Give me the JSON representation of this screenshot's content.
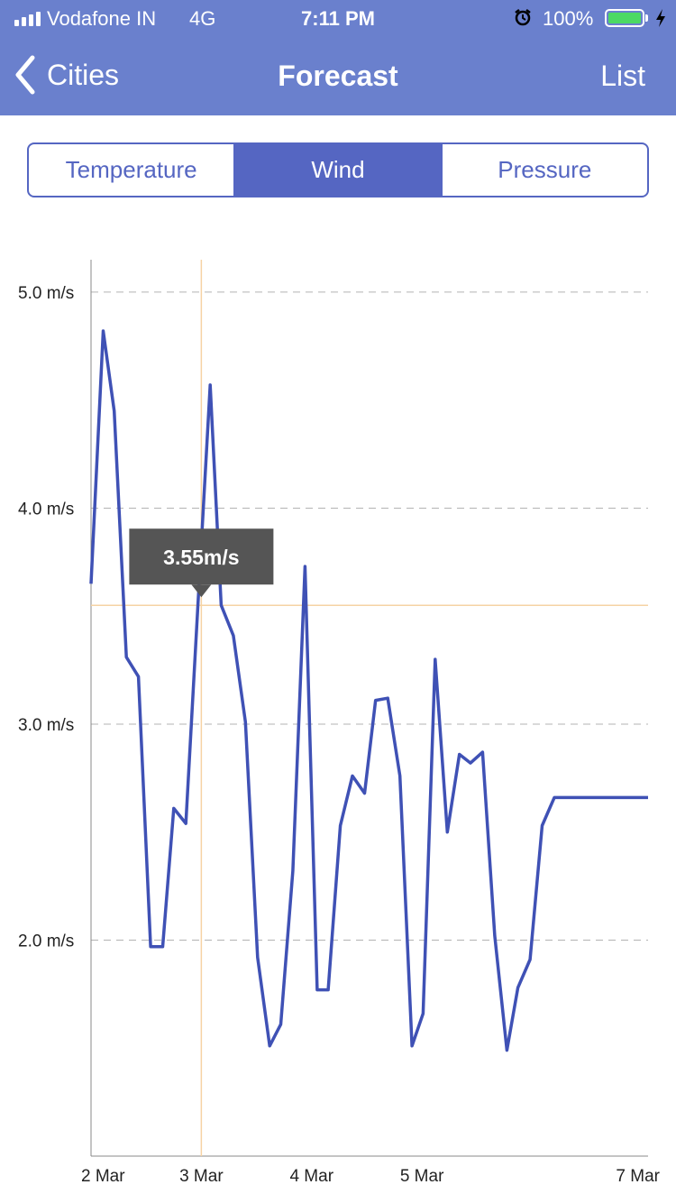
{
  "status_bar": {
    "carrier": "Vodafone IN",
    "network": "4G",
    "time": "7:11 PM",
    "battery": "100%",
    "icons": [
      "signal-bars-icon",
      "alarm-icon",
      "battery-icon",
      "charging-bolt-icon"
    ]
  },
  "nav": {
    "back_label": "Cities",
    "title": "Forecast",
    "right_label": "List",
    "back_icon": "chevron-left-icon"
  },
  "segments": [
    {
      "label": "Temperature",
      "selected": false
    },
    {
      "label": "Wind",
      "selected": true
    },
    {
      "label": "Pressure",
      "selected": false
    }
  ],
  "colors": {
    "header": "#6a80cd",
    "accent": "#5566c2",
    "line": "#3f51b5",
    "crosshair": "#f6d3a4",
    "tooltip": "#555555"
  },
  "tooltip": {
    "text": "3.55m/s",
    "x_day": 3.0,
    "value": 3.55
  },
  "chart_data": {
    "type": "line",
    "ylabel": "",
    "xlabel": "",
    "y_unit": "m/s",
    "ylim": [
      1.0,
      5.15
    ],
    "xlim": [
      2.0,
      7.05
    ],
    "y_ticks": [
      {
        "value": 2.0,
        "label": "2.0 m/s"
      },
      {
        "value": 3.0,
        "label": "3.0 m/s"
      },
      {
        "value": 4.0,
        "label": "4.0 m/s"
      },
      {
        "value": 5.0,
        "label": "5.0 m/s"
      }
    ],
    "x_ticks": [
      {
        "value": 2,
        "label": "2 Mar"
      },
      {
        "value": 3,
        "label": "3 Mar"
      },
      {
        "value": 4,
        "label": "4 Mar"
      },
      {
        "value": 5,
        "label": "5 Mar"
      },
      {
        "value": 7,
        "label": "7 Mar"
      }
    ],
    "grid": "horizontal-dashed",
    "series": [
      {
        "x": [
          2.0,
          2.11,
          2.21,
          2.32,
          2.43,
          2.54,
          2.65,
          2.75,
          2.86,
          2.97,
          3.08,
          3.18,
          3.29,
          3.4,
          3.51,
          3.62,
          3.72,
          3.83,
          3.94,
          4.05,
          4.15,
          4.26,
          4.37,
          4.48,
          4.58,
          4.69,
          4.8,
          4.91,
          5.01,
          5.12,
          5.23,
          5.34,
          5.44,
          5.55,
          5.66,
          5.77,
          5.87,
          5.98,
          6.09,
          6.2,
          6.3,
          6.41,
          6.52,
          6.63,
          6.73,
          6.84,
          6.95,
          7.05
        ],
        "values": [
          3.65,
          4.82,
          4.45,
          3.31,
          3.22,
          1.97,
          1.97,
          2.61,
          2.54,
          3.56,
          4.57,
          3.55,
          3.41,
          3.01,
          1.92,
          1.51,
          1.61,
          2.32,
          3.73,
          1.77,
          1.77,
          2.53,
          2.76,
          2.68,
          3.11,
          3.12,
          2.76,
          1.51,
          1.66,
          3.3,
          2.5,
          2.86,
          2.82,
          2.87,
          2.02,
          1.49,
          1.78,
          1.91,
          2.53,
          2.66,
          2.66,
          2.66,
          2.66,
          2.66,
          2.66,
          2.66,
          2.66,
          2.66
        ]
      }
    ]
  }
}
